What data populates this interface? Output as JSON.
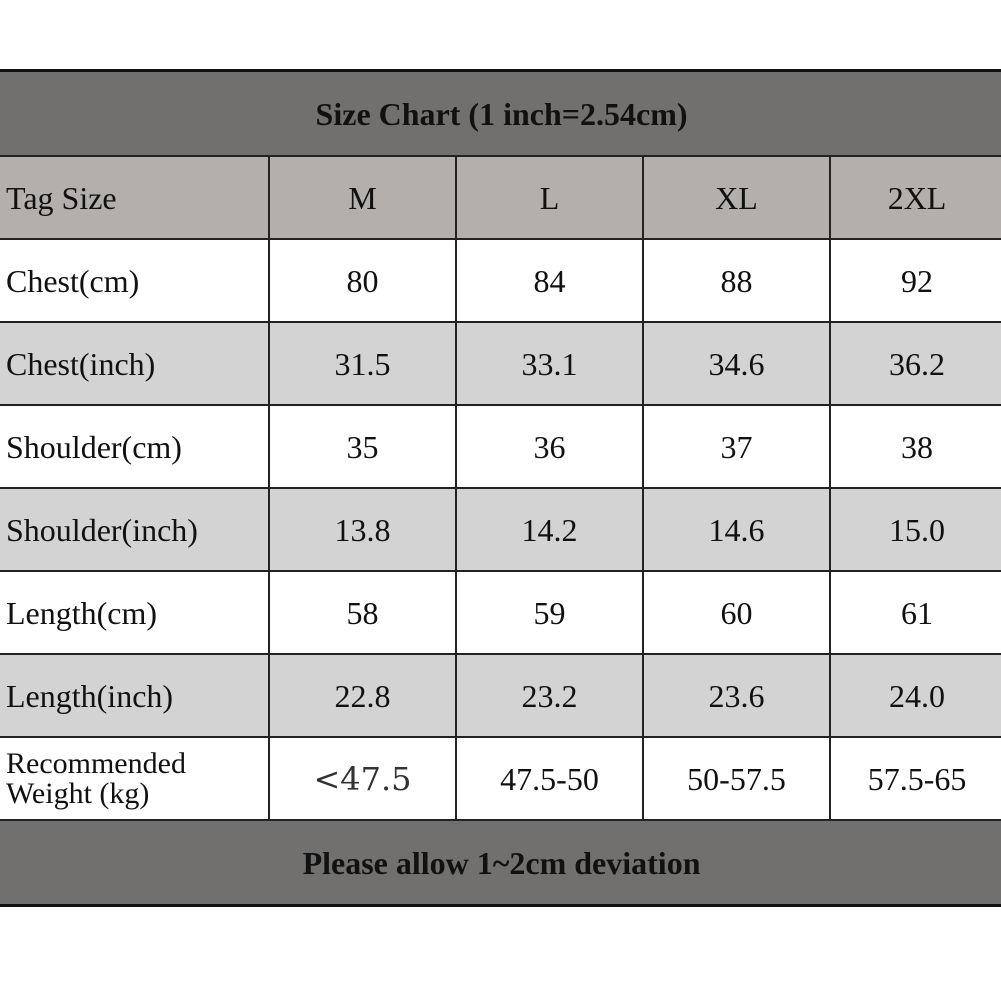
{
  "title": "Size Chart (1 inch=2.54cm)",
  "header": {
    "label": "Tag Size",
    "sizes": [
      "M",
      "L",
      "XL",
      "2XL"
    ]
  },
  "rows": [
    {
      "label": "Chest(cm)",
      "values": [
        "80",
        "84",
        "88",
        "92"
      ]
    },
    {
      "label": "Chest(inch)",
      "values": [
        "31.5",
        "33.1",
        "34.6",
        "36.2"
      ]
    },
    {
      "label": "Shoulder(cm)",
      "values": [
        "35",
        "36",
        "37",
        "38"
      ]
    },
    {
      "label": "Shoulder(inch)",
      "values": [
        "13.8",
        "14.2",
        "14.6",
        "15.0"
      ]
    },
    {
      "label": "Length(cm)",
      "values": [
        "58",
        "59",
        "60",
        "61"
      ]
    },
    {
      "label": "Length(inch)",
      "values": [
        "22.8",
        "23.2",
        "23.6",
        "24.0"
      ]
    }
  ],
  "weight": {
    "label_line1": "Recommended",
    "label_line2": "Weight (kg)",
    "values": [
      "<47.5",
      "47.5-50",
      "50-57.5",
      "57.5-65"
    ]
  },
  "footer": "Please allow 1~2cm deviation",
  "colors": {
    "banner": "#72706e",
    "header": "#b2afad",
    "alt_row": "#d4d3d3",
    "border": "#222222"
  }
}
